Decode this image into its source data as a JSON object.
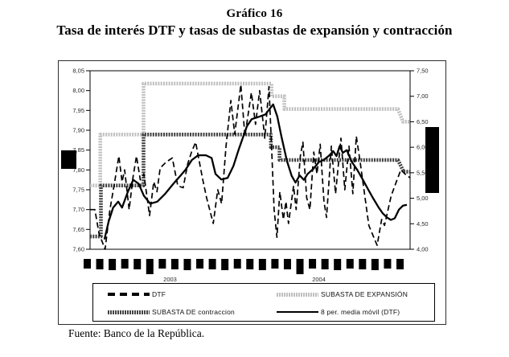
{
  "title": {
    "line1": "Gráfico 16",
    "line2": "Tasa de interés DTF y tasas de subastas de expansión y contracción"
  },
  "source_note": "Fuente: Banco de la República.",
  "legend": [
    {
      "label": "DTF",
      "style": "dashed-black"
    },
    {
      "label": "SUBASTA DE EXPANSIÓN",
      "style": "ribbed-light-gray"
    },
    {
      "label": "SUBASTA DE contraccion",
      "style": "ribbed-dark-gray"
    },
    {
      "label": "8 per. media móvil (DTF)",
      "style": "solid-black"
    }
  ],
  "colors": {
    "light_gray": "#bfbfbf",
    "dark_gray": "#3f3f3f",
    "black": "#000000",
    "tick_text": "#2a2a2a"
  },
  "chart_data": {
    "type": "line",
    "title": "Tasa de interés DTF y tasas de subastas de expansión y contracción",
    "grid": false,
    "legend_position": "bottom",
    "y_left": {
      "min": 7.6,
      "max": 8.05,
      "ticks": [
        "8,05",
        "8,00",
        "7,95",
        "7,90",
        "7,85",
        "7,80",
        "7,75",
        "7,70",
        "7,65",
        "7,60"
      ]
    },
    "y_right": {
      "min": 4.0,
      "max": 7.5,
      "ticks": [
        "7,50",
        "7,00",
        "6,50",
        "6,00",
        "5,50",
        "5,00",
        "4,50",
        "4,00"
      ]
    },
    "x_axis": {
      "year_labels": [
        "2003",
        "2004"
      ],
      "month_tick_count": 26
    },
    "series": [
      {
        "name": "DTF",
        "axis": "left",
        "style": "dashed-black",
        "points": [
          [
            0.0,
            7.7
          ],
          [
            0.015,
            7.7
          ],
          [
            0.028,
            7.64
          ],
          [
            0.047,
            7.6
          ],
          [
            0.062,
            7.7
          ],
          [
            0.075,
            7.76
          ],
          [
            0.09,
            7.835
          ],
          [
            0.1,
            7.77
          ],
          [
            0.108,
            7.8
          ],
          [
            0.122,
            7.7
          ],
          [
            0.134,
            7.78
          ],
          [
            0.145,
            7.835
          ],
          [
            0.157,
            7.775
          ],
          [
            0.168,
            7.79
          ],
          [
            0.186,
            7.685
          ],
          [
            0.199,
            7.77
          ],
          [
            0.209,
            7.745
          ],
          [
            0.219,
            7.805
          ],
          [
            0.238,
            7.82
          ],
          [
            0.257,
            7.83
          ],
          [
            0.274,
            7.76
          ],
          [
            0.291,
            7.755
          ],
          [
            0.305,
            7.815
          ],
          [
            0.317,
            7.845
          ],
          [
            0.33,
            7.87
          ],
          [
            0.351,
            7.78
          ],
          [
            0.364,
            7.73
          ],
          [
            0.385,
            7.665
          ],
          [
            0.399,
            7.75
          ],
          [
            0.411,
            7.715
          ],
          [
            0.425,
            7.86
          ],
          [
            0.44,
            7.975
          ],
          [
            0.452,
            7.89
          ],
          [
            0.471,
            8.015
          ],
          [
            0.484,
            7.885
          ],
          [
            0.504,
            7.995
          ],
          [
            0.517,
            7.915
          ],
          [
            0.53,
            8.0
          ],
          [
            0.546,
            7.88
          ],
          [
            0.559,
            8.01
          ],
          [
            0.567,
            7.86
          ],
          [
            0.575,
            7.7
          ],
          [
            0.584,
            7.63
          ],
          [
            0.593,
            7.745
          ],
          [
            0.604,
            7.675
          ],
          [
            0.612,
            7.72
          ],
          [
            0.62,
            7.665
          ],
          [
            0.636,
            7.76
          ],
          [
            0.644,
            7.7
          ],
          [
            0.657,
            7.835
          ],
          [
            0.665,
            7.87
          ],
          [
            0.677,
            7.73
          ],
          [
            0.687,
            7.7
          ],
          [
            0.699,
            7.845
          ],
          [
            0.709,
            7.79
          ],
          [
            0.719,
            7.865
          ],
          [
            0.731,
            7.72
          ],
          [
            0.739,
            7.68
          ],
          [
            0.754,
            7.86
          ],
          [
            0.767,
            7.74
          ],
          [
            0.784,
            7.88
          ],
          [
            0.796,
            7.75
          ],
          [
            0.809,
            7.86
          ],
          [
            0.821,
            7.74
          ],
          [
            0.832,
            7.885
          ],
          [
            0.844,
            7.82
          ],
          [
            0.855,
            7.755
          ],
          [
            0.871,
            7.66
          ],
          [
            0.897,
            7.61
          ],
          [
            0.911,
            7.675
          ],
          [
            0.92,
            7.66
          ],
          [
            0.941,
            7.735
          ],
          [
            0.957,
            7.77
          ],
          [
            0.971,
            7.8
          ],
          [
            0.984,
            7.79
          ],
          [
            1.0,
            7.78
          ]
        ]
      },
      {
        "name": "SUBASTA DE EXPANSIÓN",
        "axis": "right",
        "style": "ribbed-light-gray",
        "points": [
          [
            0.0,
            5.25
          ],
          [
            0.032,
            5.25
          ],
          [
            0.032,
            6.25
          ],
          [
            0.167,
            6.25
          ],
          [
            0.167,
            7.25
          ],
          [
            0.567,
            7.25
          ],
          [
            0.567,
            7.0
          ],
          [
            0.607,
            7.0
          ],
          [
            0.607,
            6.75
          ],
          [
            0.962,
            6.75
          ],
          [
            0.978,
            6.5
          ],
          [
            1.0,
            6.5
          ]
        ]
      },
      {
        "name": "SUBASTA DE contraccion",
        "axis": "right",
        "style": "ribbed-dark-gray",
        "points": [
          [
            0.0,
            4.25
          ],
          [
            0.034,
            4.25
          ],
          [
            0.034,
            5.25
          ],
          [
            0.167,
            5.25
          ],
          [
            0.167,
            6.25
          ],
          [
            0.565,
            6.25
          ],
          [
            0.565,
            6.0
          ],
          [
            0.592,
            6.0
          ],
          [
            0.592,
            5.75
          ],
          [
            0.962,
            5.75
          ],
          [
            0.98,
            5.52
          ],
          [
            1.0,
            5.52
          ]
        ]
      },
      {
        "name": "8 per. media móvil (DTF)",
        "axis": "left",
        "style": "solid-black",
        "points": [
          [
            0.045,
            7.625
          ],
          [
            0.058,
            7.67
          ],
          [
            0.072,
            7.705
          ],
          [
            0.088,
            7.72
          ],
          [
            0.1,
            7.705
          ],
          [
            0.118,
            7.745
          ],
          [
            0.135,
            7.775
          ],
          [
            0.152,
            7.765
          ],
          [
            0.168,
            7.735
          ],
          [
            0.188,
            7.715
          ],
          [
            0.21,
            7.72
          ],
          [
            0.235,
            7.74
          ],
          [
            0.26,
            7.765
          ],
          [
            0.282,
            7.785
          ],
          [
            0.298,
            7.8
          ],
          [
            0.318,
            7.825
          ],
          [
            0.338,
            7.837
          ],
          [
            0.362,
            7.837
          ],
          [
            0.38,
            7.83
          ],
          [
            0.392,
            7.79
          ],
          [
            0.41,
            7.776
          ],
          [
            0.43,
            7.78
          ],
          [
            0.448,
            7.81
          ],
          [
            0.465,
            7.853
          ],
          [
            0.49,
            7.91
          ],
          [
            0.505,
            7.928
          ],
          [
            0.528,
            7.934
          ],
          [
            0.548,
            7.94
          ],
          [
            0.562,
            7.955
          ],
          [
            0.572,
            7.965
          ],
          [
            0.585,
            7.935
          ],
          [
            0.598,
            7.884
          ],
          [
            0.615,
            7.823
          ],
          [
            0.63,
            7.785
          ],
          [
            0.642,
            7.768
          ],
          [
            0.655,
            7.786
          ],
          [
            0.668,
            7.775
          ],
          [
            0.68,
            7.79
          ],
          [
            0.698,
            7.803
          ],
          [
            0.715,
            7.82
          ],
          [
            0.73,
            7.825
          ],
          [
            0.748,
            7.837
          ],
          [
            0.76,
            7.847
          ],
          [
            0.77,
            7.835
          ],
          [
            0.78,
            7.86
          ],
          [
            0.79,
            7.843
          ],
          [
            0.802,
            7.85
          ],
          [
            0.818,
            7.82
          ],
          [
            0.835,
            7.8
          ],
          [
            0.852,
            7.776
          ],
          [
            0.868,
            7.752
          ],
          [
            0.885,
            7.728
          ],
          [
            0.902,
            7.705
          ],
          [
            0.915,
            7.69
          ],
          [
            0.928,
            7.68
          ],
          [
            0.94,
            7.674
          ],
          [
            0.952,
            7.678
          ],
          [
            0.965,
            7.7
          ],
          [
            0.978,
            7.71
          ],
          [
            0.99,
            7.712
          ]
        ]
      }
    ]
  }
}
